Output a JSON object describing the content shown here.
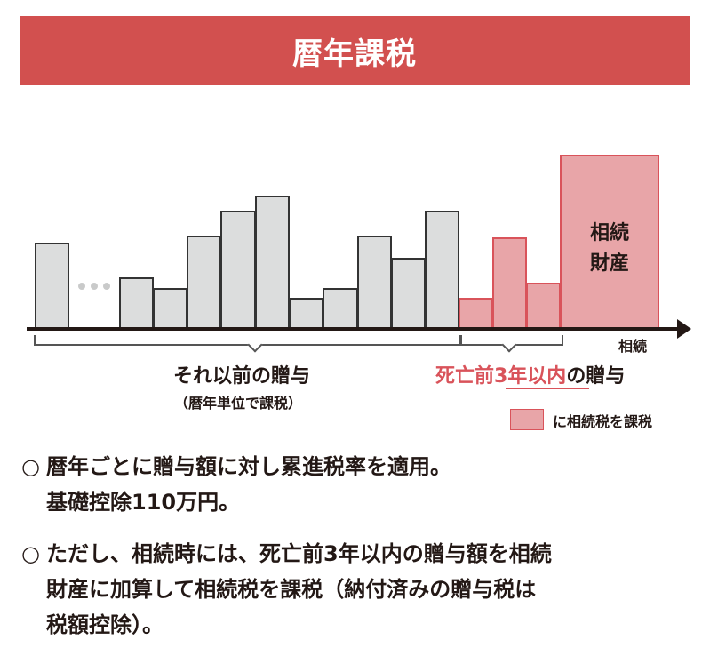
{
  "banner": {
    "title": "暦年課税"
  },
  "diagram": {
    "inheritance_property_label_line1": "相続",
    "inheritance_property_label_line2": "財産",
    "axis_end_label": "相続",
    "earlier_gifts_label": "それ以前の贈与",
    "earlier_gifts_sub": "（暦年単位で課税）",
    "recent_gifts_red": "死亡前3年以内",
    "recent_gifts_suffix": "の贈与",
    "legend_text": "に相続税を課税",
    "colors": {
      "gray_bar": "#dcdddd",
      "red_bar": "#e8a5a8",
      "accent": "#d2504f"
    }
  },
  "notes": [
    {
      "bullet": "○",
      "line1": "暦年ごとに贈与額に対し累進税率を適用。",
      "line2": "基礎控除110万円。"
    },
    {
      "bullet": "○",
      "line1": "ただし、相続時には、死亡前3年以内の贈与額を相続",
      "line2": "財産に加算して相続税を課税（納付済みの贈与税は",
      "line3": "税額控除）。"
    }
  ]
}
